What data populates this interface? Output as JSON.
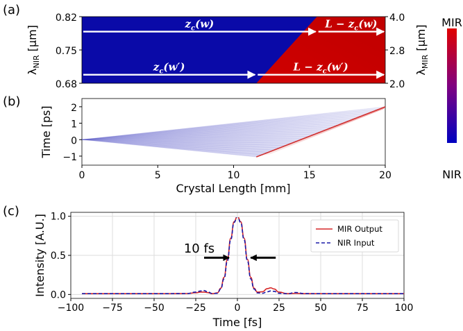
{
  "panel_labels": [
    "(a)",
    "(b)",
    "(c)"
  ],
  "chart_data": [
    {
      "panel": "(a)",
      "type": "heatmap",
      "title": "",
      "xlim": [
        0,
        20
      ],
      "ylim": [
        0.68,
        0.82
      ],
      "ylabel": "λNIR [μm]",
      "ylabel_parts": {
        "main": "λ",
        "sub": "NIR",
        "unit": " [μm]"
      },
      "yticks": [
        0.68,
        0.75,
        0.82
      ],
      "ytick_labels": [
        "0.68",
        "0.75",
        "0.82"
      ],
      "y2label": "λMIR [μm]",
      "y2label_parts": {
        "main": "λ",
        "sub": "MIR",
        "unit": " [μm]"
      },
      "y2ticks": [
        2.0,
        2.8,
        4.0
      ],
      "y2tick_labels": [
        "2.0",
        "2.8",
        "4.0"
      ],
      "boundary": {
        "x": [
          11.5,
          15.5
        ],
        "y": [
          0.68,
          0.82
        ]
      },
      "colors": {
        "nir": "#0a0aa8",
        "mir": "#c00000"
      },
      "annotations": [
        {
          "text": "zc(w)",
          "text_parts": {
            "main": "z",
            "sub": "c",
            "arg": "(w)"
          },
          "x_start": 0,
          "x_end": 15.5,
          "y": 0.7885
        },
        {
          "text": "L − zc(w)",
          "text_parts": {
            "pre": "L − z",
            "sub": "c",
            "arg": "(w)"
          },
          "x_start": 15.5,
          "x_end": 20,
          "y": 0.7885
        },
        {
          "text": "zc(w′)",
          "text_parts": {
            "main": "z",
            "sub": "c",
            "arg": "(w′)"
          },
          "x_start": 0,
          "x_end": 11.5,
          "y": 0.698
        },
        {
          "text": "L − zc(w′)",
          "text_parts": {
            "pre": "L − z",
            "sub": "c",
            "arg": "(w′)"
          },
          "x_start": 11.5,
          "x_end": 20,
          "y": 0.698
        }
      ]
    },
    {
      "panel": "(b)",
      "type": "area",
      "title": "",
      "xlabel": "Crystal Length [mm]",
      "ylabel": "Time [ps]",
      "xlim": [
        0,
        20
      ],
      "ylim": [
        -1.55,
        2.5
      ],
      "xticks": [
        0,
        5,
        10,
        15,
        20
      ],
      "xtick_labels": [
        "0",
        "5",
        "10",
        "15",
        "20"
      ],
      "yticks": [
        -1,
        0,
        1,
        2
      ],
      "ytick_labels": [
        "−1",
        "0",
        "1",
        "2"
      ],
      "nir_fan": {
        "origin": [
          0,
          0
        ],
        "upper_end": [
          20,
          2.0
        ],
        "lower_end": [
          11.5,
          -1.05
        ]
      },
      "mir_edge": {
        "from": [
          11.5,
          -1.05
        ],
        "to": [
          20,
          2.0
        ]
      }
    },
    {
      "panel": "(c)",
      "type": "line",
      "title": "",
      "xlabel": "Time [fs]",
      "ylabel": "Intensity [A.U.]",
      "xlim": [
        -100,
        100
      ],
      "ylim": [
        -0.05,
        1.05
      ],
      "xticks": [
        -100,
        -75,
        -50,
        -25,
        0,
        25,
        50,
        75,
        100
      ],
      "xtick_labels": [
        "−100",
        "−75",
        "−50",
        "−25",
        "0",
        "25",
        "50",
        "75",
        "100"
      ],
      "yticks": [
        0.0,
        0.5,
        1.0
      ],
      "ytick_labels": [
        "0.0",
        "0.5",
        "1.0"
      ],
      "grid": true,
      "legend_position": "top-right",
      "x": [
        -100,
        -50,
        -30,
        -25,
        -22,
        -20,
        -18,
        -15,
        -12,
        -10,
        -8,
        -6,
        -4,
        -2,
        0,
        2,
        4,
        6,
        8,
        10,
        12,
        15,
        18,
        20,
        22,
        25,
        30,
        35,
        40,
        50,
        100
      ],
      "series": [
        {
          "name": "MIR Output",
          "color": "#d62728",
          "dash": "solid",
          "values": [
            0.01,
            0.01,
            0.012,
            0.022,
            0.03,
            0.03,
            0.025,
            0.01,
            0.02,
            0.08,
            0.22,
            0.45,
            0.72,
            0.93,
            1.0,
            0.93,
            0.72,
            0.45,
            0.22,
            0.08,
            0.03,
            0.035,
            0.075,
            0.085,
            0.07,
            0.03,
            0.01,
            0.015,
            0.01,
            0.01,
            0.01
          ]
        },
        {
          "name": "NIR Input",
          "color": "#1a1aa8",
          "dash": "dashed",
          "values": [
            0.01,
            0.01,
            0.012,
            0.03,
            0.045,
            0.05,
            0.035,
            0.012,
            0.015,
            0.07,
            0.2,
            0.43,
            0.7,
            0.92,
            1.0,
            0.92,
            0.7,
            0.43,
            0.2,
            0.07,
            0.02,
            0.015,
            0.035,
            0.045,
            0.04,
            0.015,
            0.01,
            0.025,
            0.012,
            0.01,
            0.01
          ]
        }
      ],
      "annotation": {
        "text": "10 fs",
        "arrow_left_x": [
          -20,
          -5
        ],
        "arrow_right_x": [
          8,
          23
        ],
        "y": 0.47
      }
    }
  ],
  "colorbar": {
    "top_label": "MIR",
    "bottom_label": "NIR",
    "top_color": "#e00000",
    "mid_color": "#800080",
    "bottom_color": "#0000c0"
  }
}
